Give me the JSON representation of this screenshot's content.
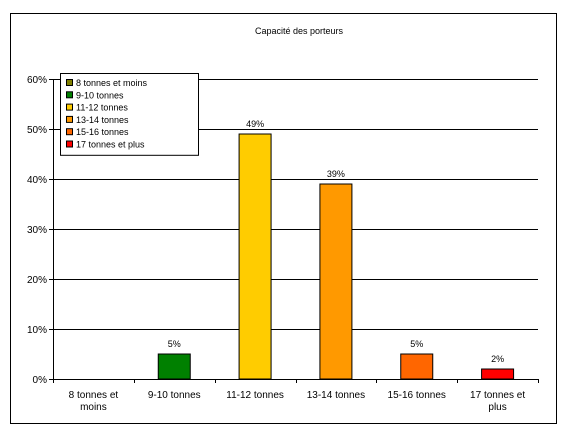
{
  "chart_data": {
    "type": "bar",
    "title": "Capacité des porteurs",
    "categories": [
      "8 tonnes et moins",
      "9-10 tonnes",
      "11-12 tonnes",
      "13-14 tonnes",
      "15-16 tonnes",
      "17 tonnes et plus"
    ],
    "category_labels": [
      [
        "8 tonnes et",
        "moins"
      ],
      [
        "9-10 tonnes"
      ],
      [
        "11-12 tonnes"
      ],
      [
        "13-14 tonnes"
      ],
      [
        "15-16 tonnes"
      ],
      [
        "17 tonnes et",
        "plus"
      ]
    ],
    "values": [
      0,
      5,
      49,
      39,
      5,
      2
    ],
    "data_labels": [
      "",
      "5%",
      "49%",
      "39%",
      "5%",
      "2%"
    ],
    "colors": [
      "#808000",
      "#008000",
      "#ffcc00",
      "#ff9900",
      "#ff6600",
      "#ff0000"
    ],
    "ylim": [
      0,
      60
    ],
    "yticks": [
      0,
      10,
      20,
      30,
      40,
      50,
      60
    ],
    "ytick_labels": [
      "0%",
      "10%",
      "20%",
      "30%",
      "40%",
      "50%",
      "60%"
    ],
    "grid": true,
    "legend_position": "top-left",
    "legend_entries": [
      "8 tonnes et moins",
      "9-10 tonnes",
      "11-12 tonnes",
      "13-14 tonnes",
      "15-16 tonnes",
      "17 tonnes et plus"
    ]
  }
}
